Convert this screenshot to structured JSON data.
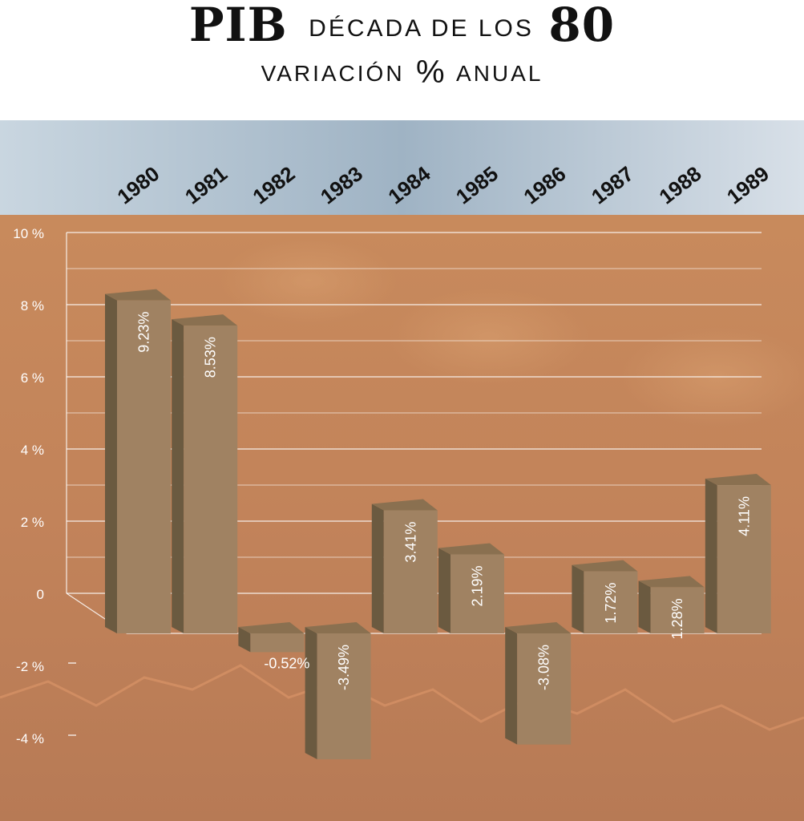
{
  "title": {
    "main": "PIB",
    "subtitle": "DÉCADA DE LOS",
    "decade": "80",
    "line2_left": "VARIACIÓN",
    "line2_symbol": "%",
    "line2_right": "ANUAL"
  },
  "colors": {
    "bar_front": "#a08262",
    "bar_side": "#6b5a40",
    "bar_top": "#8a7050",
    "overlay": "#c98a5a",
    "sky": "#9fb6c8",
    "label_text": "#ffffff"
  },
  "chart_data": {
    "type": "bar",
    "style": "3d",
    "categories": [
      "1980",
      "1981",
      "1982",
      "1983",
      "1984",
      "1985",
      "1986",
      "1987",
      "1988",
      "1989"
    ],
    "values": [
      9.23,
      8.53,
      -0.52,
      -3.49,
      3.41,
      2.19,
      -3.08,
      1.72,
      1.28,
      4.11
    ],
    "data_labels": [
      "9.23%",
      "8.53%",
      "-0.52%",
      "-3.49%",
      "3.41%",
      "2.19%",
      "-3.08%",
      "1.72%",
      "1.28%",
      "4.11%"
    ],
    "y_ticks": [
      10,
      8,
      6,
      4,
      2,
      0,
      -2,
      -4
    ],
    "y_tick_labels": [
      "10 %",
      "8 %",
      "6 %",
      "4 %",
      "2 %",
      "0",
      "-2 %",
      "-4 %"
    ],
    "ylim": [
      -5.5,
      10
    ],
    "grid": true
  }
}
